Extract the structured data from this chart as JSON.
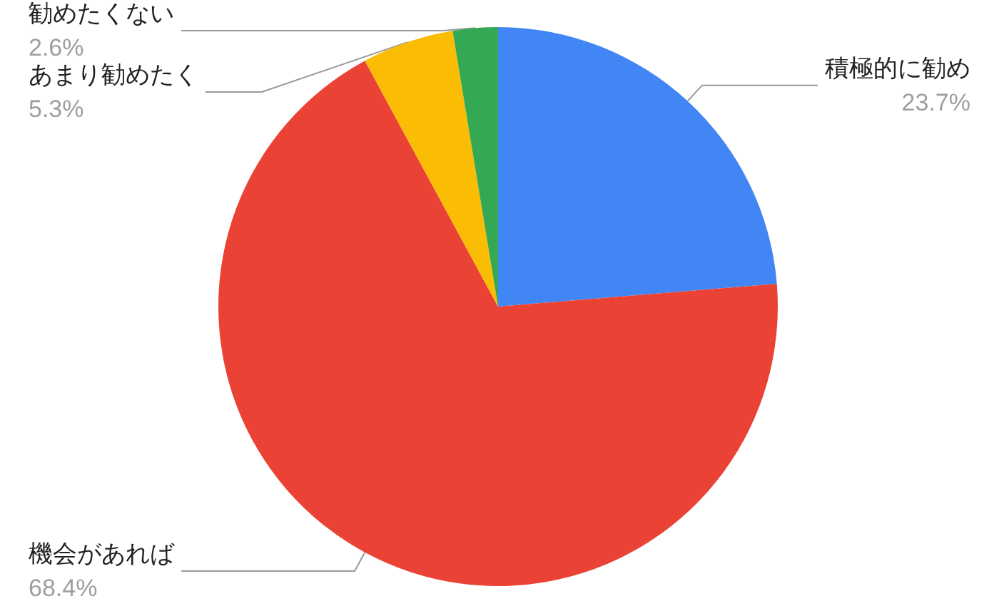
{
  "chart_data": {
    "type": "pie",
    "categories": [
      "積極的に勧め",
      "機会があれば",
      "あまり勧めたく",
      "勧めたくない"
    ],
    "values": [
      23.7,
      68.4,
      5.3,
      2.6
    ],
    "colors": [
      "#4285f4",
      "#ea4335",
      "#fbbc04",
      "#34a853"
    ],
    "value_labels": [
      "23.7%",
      "68.4%",
      "5.3%",
      "2.6%"
    ],
    "legend": false
  }
}
